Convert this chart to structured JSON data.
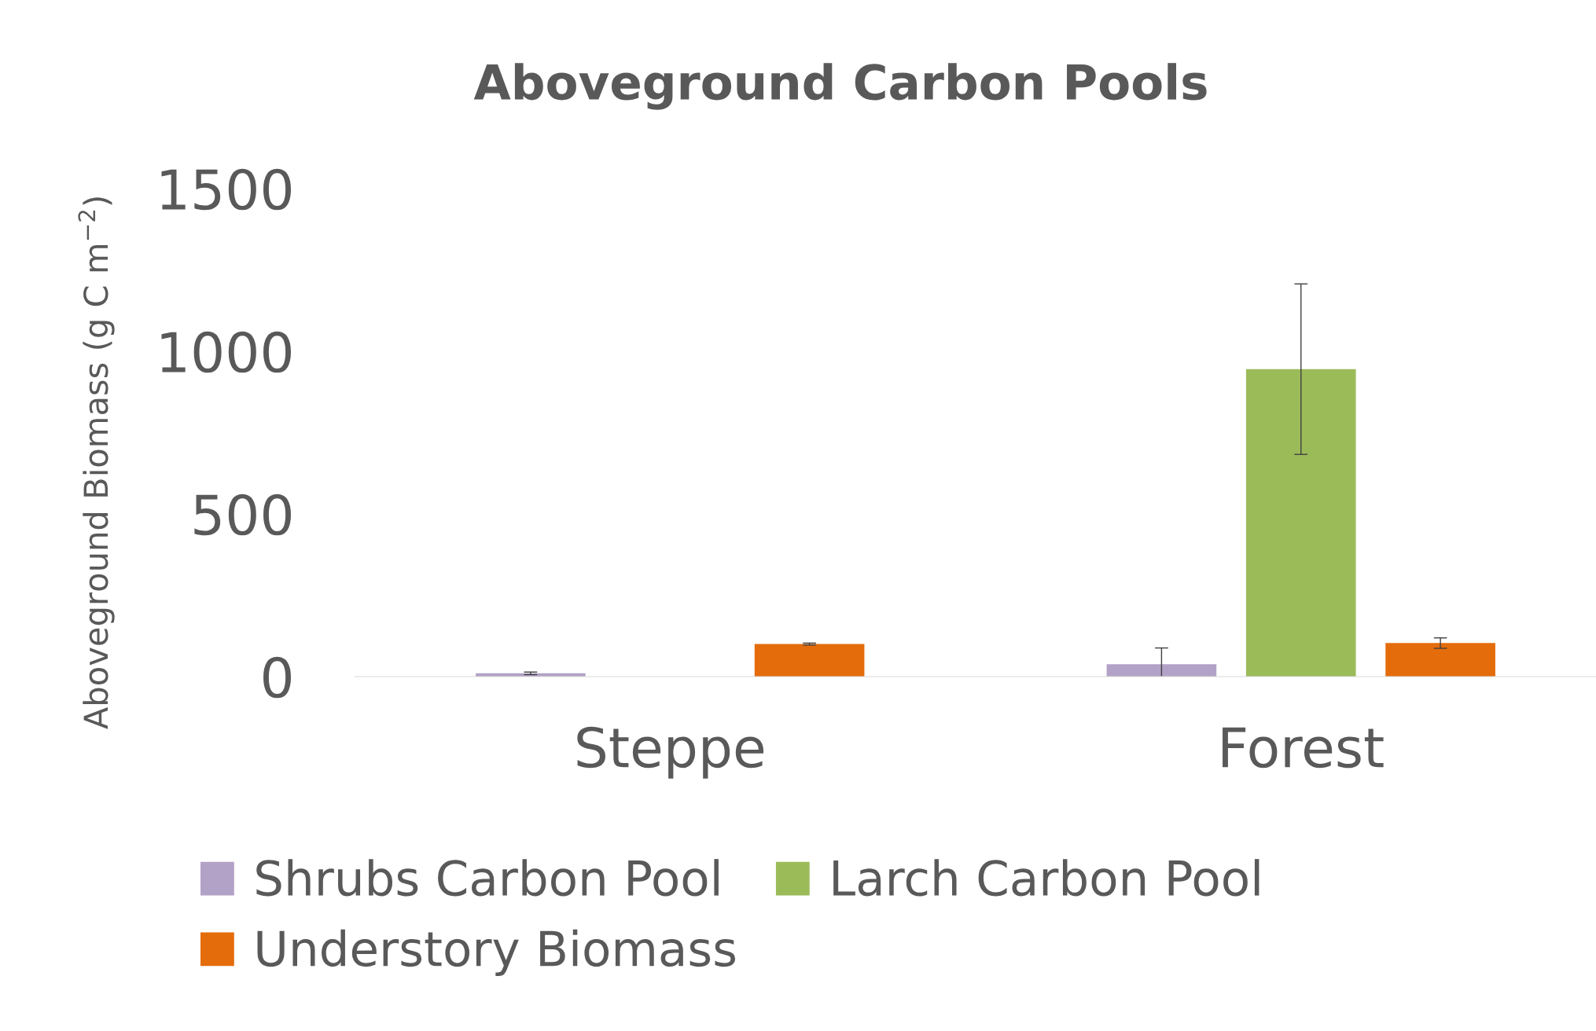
{
  "chart_data": {
    "type": "bar",
    "title": "Aboveground Carbon Pools",
    "ylabel": "Aboveground Biomass (g C m$^{−2}$)",
    "categories": [
      "Steppe",
      "Forest"
    ],
    "series": [
      {
        "name": "Shrubs Carbon Pool",
        "color": "#b3a2c7",
        "values": [
          10,
          38
        ],
        "errors": [
          4,
          50
        ]
      },
      {
        "name": "Larch Carbon Pool",
        "color": "#9bbb59",
        "values": [
          null,
          945
        ],
        "errors": [
          null,
          262
        ]
      },
      {
        "name": "Understory Biomass",
        "color": "#e46c0a",
        "values": [
          100,
          103
        ],
        "errors": [
          3,
          16
        ]
      }
    ],
    "ylim": [
      0,
      1500
    ],
    "yticks": [
      0,
      500,
      1000,
      1500
    ],
    "grid": false,
    "legend": "bottom"
  }
}
